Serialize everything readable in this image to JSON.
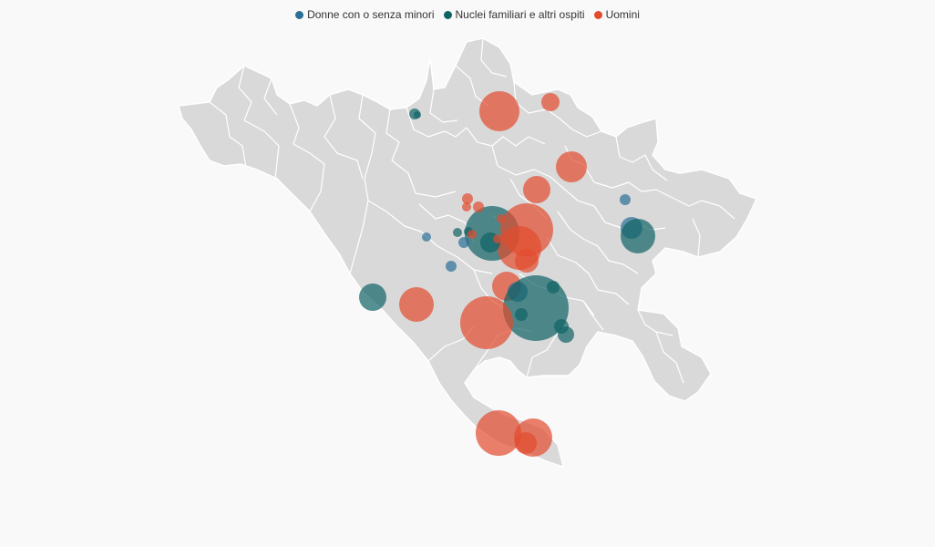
{
  "legend": [
    {
      "label": "Donne con o senza minori",
      "color": "#2b6f95"
    },
    {
      "label": "Nuclei familiari e altri ospiti",
      "color": "#0f6365"
    },
    {
      "label": "Uomini",
      "color": "#e24b2e"
    }
  ],
  "map_data": {
    "type": "bubble-map",
    "base_color": "#d9d9d9",
    "border_color": "#ffffff",
    "bubbles": [
      {
        "category": 2,
        "size": 22
      },
      {
        "category": 2,
        "size": 10
      },
      {
        "category": 1,
        "size": 6
      },
      {
        "category": 1,
        "size": 4
      },
      {
        "category": 2,
        "size": 17
      },
      {
        "category": 2,
        "size": 15
      },
      {
        "category": 0,
        "size": 6
      },
      {
        "category": 1,
        "size": 30
      },
      {
        "category": 2,
        "size": 29
      },
      {
        "category": 2,
        "size": 24
      },
      {
        "category": 2,
        "size": 13
      },
      {
        "category": 1,
        "size": 11
      },
      {
        "category": 2,
        "size": 6
      },
      {
        "category": 2,
        "size": 6
      },
      {
        "category": 2,
        "size": 5
      },
      {
        "category": 1,
        "size": 5
      },
      {
        "category": 1,
        "size": 5
      },
      {
        "category": 0,
        "size": 5
      },
      {
        "category": 0,
        "size": 6
      },
      {
        "category": 2,
        "size": 5
      },
      {
        "category": 2,
        "size": 16
      },
      {
        "category": 0,
        "size": 11
      },
      {
        "category": 1,
        "size": 36
      },
      {
        "category": 2,
        "size": 29
      },
      {
        "category": 1,
        "size": 7
      },
      {
        "category": 1,
        "size": 7
      },
      {
        "category": 1,
        "size": 8
      },
      {
        "category": 1,
        "size": 9
      },
      {
        "category": 1,
        "size": 15
      },
      {
        "category": 2,
        "size": 19
      },
      {
        "category": 0,
        "size": 12
      },
      {
        "category": 1,
        "size": 19
      },
      {
        "category": 0,
        "size": 6
      },
      {
        "category": 2,
        "size": 25
      },
      {
        "category": 2,
        "size": 21
      },
      {
        "category": 2,
        "size": 12
      },
      {
        "category": 2,
        "size": 5
      },
      {
        "category": 2,
        "size": 5
      }
    ]
  }
}
